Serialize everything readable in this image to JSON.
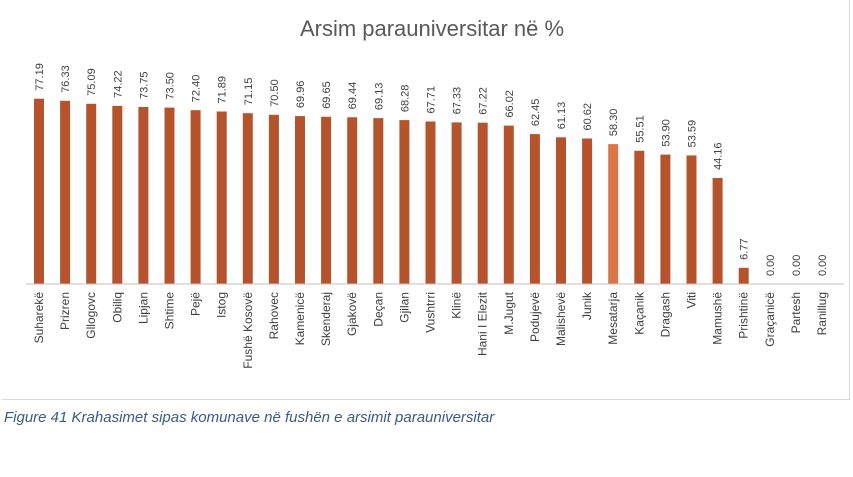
{
  "chart_data": {
    "type": "bar",
    "title": "Arsim parauniversitar në %",
    "categories": [
      "Suharekë",
      "Prizren",
      "Gllogovc",
      "Obiliq",
      "Lipjan",
      "Shtime",
      "Pejë",
      "Istog",
      "Fushë Kosovë",
      "Rahovec",
      "Kamenicë",
      "Skenderaj",
      "Gjakovë",
      "Deçan",
      "Gjilan",
      "Vushtrri",
      "Klinë",
      "Hani I Elezit",
      "M.Jugut",
      "Podujevë",
      "Malishevë",
      "Junik",
      "Mesatarja",
      "Kaçanik",
      "Dragash",
      "Viti",
      "Mamushë",
      "Prishtinë",
      "Graçanicë",
      "Partesh",
      "Ranillug"
    ],
    "values": [
      77.19,
      76.33,
      75.09,
      74.22,
      73.75,
      73.5,
      72.4,
      71.89,
      71.15,
      70.5,
      69.96,
      69.65,
      69.44,
      69.13,
      68.28,
      67.71,
      67.33,
      67.22,
      66.02,
      62.45,
      61.13,
      60.62,
      58.3,
      55.51,
      53.9,
      53.59,
      44.16,
      6.77,
      0.0,
      0.0,
      0.0
    ],
    "value_labels": [
      "77.19",
      "76.33",
      "75.09",
      "74.22",
      "73.75",
      "73.50",
      "72.40",
      "71.89",
      "71.15",
      "70.50",
      "69.96",
      "69.65",
      "69.44",
      "69.13",
      "68.28",
      "67.71",
      "67.33",
      "67.22",
      "66.02",
      "62.45",
      "61.13",
      "60.62",
      "58.30",
      "55.51",
      "53.90",
      "53.59",
      "44.16",
      "6.77",
      "0.00",
      "0.00",
      "0.00"
    ],
    "highlight_category": "Mesatarja",
    "ylim": [
      0,
      80
    ],
    "grid": false,
    "legend": "none",
    "xlabel": "",
    "ylabel": ""
  },
  "colors": {
    "bar": "#b5542c",
    "bar_highlight": "#d9774a",
    "title": "#595959",
    "label": "#404040",
    "axis": "#bfbfbf"
  },
  "caption": "Figure 41 Krahasimet sipas komunave në fushën e arsimit parauniversitar"
}
